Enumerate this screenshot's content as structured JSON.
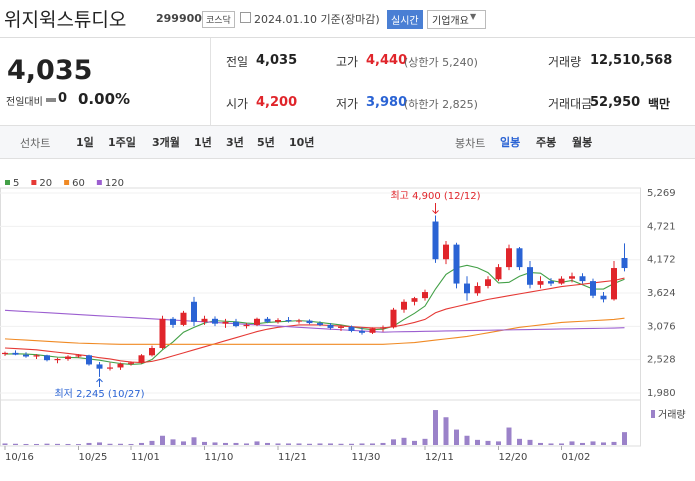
{
  "header": {
    "name": "위지윅스튜디오",
    "code": "299900",
    "market": "코스닥",
    "date": "2024.01.10 기준(장마감)",
    "realtime": "실시간",
    "company": "기업개요"
  },
  "quote": {
    "price": "4,035",
    "change_label": "전일대비",
    "change": "0",
    "change_rate": "0.00%"
  },
  "stats": [
    {
      "label": "전일",
      "value": "4,035",
      "color": "#222"
    },
    {
      "label": "고가",
      "value": "4,440",
      "note": "(상한가 5,240)",
      "color": "#e0252b"
    },
    {
      "label": "거래량",
      "value": "12,510,568",
      "color": "#222"
    },
    {
      "label": "시가",
      "value": "4,200",
      "color": "#e0252b"
    },
    {
      "label": "저가",
      "value": "3,980",
      "note": "(하한가 2,825)",
      "color": "#2a63d4"
    },
    {
      "label": "거래대금",
      "value": "52,950",
      "unit": "백만",
      "color": "#222"
    }
  ],
  "toolbar": {
    "line_chart": "선차트",
    "periods": [
      "1일",
      "1주일",
      "3개월",
      "1년",
      "3년",
      "5년",
      "10년"
    ],
    "candle_chart": "봉차트",
    "candle_periods": [
      "일봉",
      "주봉",
      "월봉"
    ],
    "selected_index": 0
  },
  "chart_data": {
    "type": "candlestick",
    "categories": [
      "10/16",
      null,
      null,
      null,
      null,
      null,
      null,
      "10/25",
      null,
      null,
      null,
      null,
      "11/01",
      null,
      null,
      null,
      null,
      null,
      null,
      "11/10",
      null,
      null,
      null,
      null,
      null,
      null,
      "11/21",
      null,
      null,
      null,
      null,
      null,
      null,
      "11/30",
      null,
      null,
      null,
      null,
      null,
      null,
      "12/11",
      null,
      null,
      null,
      null,
      null,
      null,
      "12/20",
      null,
      null,
      null,
      null,
      null,
      "01/02",
      null,
      null,
      null,
      null,
      null,
      null
    ],
    "open": [
      2620,
      2640,
      2610,
      2580,
      2600,
      2520,
      2540,
      2580,
      2600,
      2450,
      2380,
      2400,
      2460,
      2480,
      2600,
      2720,
      3200,
      3100,
      3480,
      3150,
      3200,
      3120,
      3150,
      3080,
      3100,
      3200,
      3150,
      3180,
      3160,
      3170,
      3130,
      3100,
      3050,
      3070,
      3000,
      2970,
      3040,
      3060,
      3350,
      3480,
      3540,
      4800,
      4180,
      4420,
      3780,
      3620,
      3740,
      3850,
      4050,
      4360,
      4050,
      3760,
      3820,
      3780,
      3860,
      3900,
      3820,
      3580,
      3520,
      4200
    ],
    "high": [
      2660,
      2680,
      2650,
      2620,
      2610,
      2560,
      2600,
      2620,
      2610,
      2490,
      2480,
      2480,
      2500,
      2620,
      2760,
      3250,
      3230,
      3330,
      3560,
      3250,
      3240,
      3200,
      3200,
      3130,
      3220,
      3230,
      3210,
      3230,
      3200,
      3190,
      3160,
      3130,
      3100,
      3090,
      3060,
      3060,
      3090,
      3380,
      3520,
      3560,
      3680,
      4900,
      4480,
      4450,
      3900,
      3800,
      3900,
      4100,
      4420,
      4380,
      4150,
      3900,
      3870,
      3900,
      3960,
      3950,
      3860,
      3640,
      4150,
      4440
    ],
    "low": [
      2590,
      2600,
      2560,
      2540,
      2500,
      2470,
      2510,
      2560,
      2430,
      2245,
      2350,
      2360,
      2430,
      2460,
      2580,
      2700,
      3050,
      3080,
      3080,
      3100,
      3080,
      3050,
      3060,
      3040,
      3080,
      3130,
      3120,
      3140,
      3120,
      3110,
      3080,
      3020,
      3000,
      2980,
      2940,
      2950,
      2990,
      3040,
      3300,
      3420,
      3500,
      4120,
      4100,
      3700,
      3500,
      3580,
      3700,
      3820,
      4000,
      4000,
      3700,
      3700,
      3740,
      3760,
      3800,
      3780,
      3540,
      3470,
      3500,
      3980
    ],
    "close": [
      2640,
      2610,
      2580,
      2600,
      2520,
      2540,
      2580,
      2600,
      2450,
      2380,
      2400,
      2460,
      2480,
      2600,
      2720,
      3200,
      3100,
      3300,
      3150,
      3200,
      3120,
      3150,
      3080,
      3100,
      3200,
      3150,
      3180,
      3160,
      3170,
      3130,
      3100,
      3050,
      3070,
      3000,
      2970,
      3040,
      3060,
      3350,
      3480,
      3540,
      3640,
      4180,
      4420,
      3780,
      3620,
      3740,
      3850,
      4050,
      4360,
      4050,
      3760,
      3820,
      3780,
      3860,
      3900,
      3820,
      3580,
      3520,
      4035,
      4035
    ],
    "up_color": "#e0252b",
    "down_color": "#2a63d4",
    "ylim": [
      1980,
      5269
    ],
    "yticks": [
      {
        "value": 1980,
        "label": "1,980"
      },
      {
        "value": 2528,
        "label": "2,528"
      },
      {
        "value": 3076,
        "label": "3,076"
      },
      {
        "value": 3624,
        "label": "3,624"
      },
      {
        "value": 4172,
        "label": "4,172"
      },
      {
        "value": 4721,
        "label": "4,721"
      },
      {
        "value": 5269,
        "label": "5,269"
      }
    ],
    "grid": true,
    "series": [
      {
        "name": "5",
        "color": "#43a047",
        "values": [
          2620,
          2625,
          2620,
          2610,
          2590,
          2570,
          2565,
          2560,
          2540,
          2520,
          2490,
          2465,
          2450,
          2460,
          2530,
          2690,
          2820,
          2980,
          3060,
          3130,
          3170,
          3160,
          3150,
          3130,
          3120,
          3140,
          3150,
          3160,
          3170,
          3160,
          3140,
          3120,
          3100,
          3070,
          3040,
          3020,
          3030,
          3080,
          3190,
          3290,
          3410,
          3690,
          3930,
          4040,
          4080,
          4040,
          3960,
          3790,
          3800,
          3900,
          3960,
          3950,
          3830,
          3800,
          3830,
          3760,
          3690,
          3690,
          3780,
          3850
        ]
      },
      {
        "name": "20",
        "color": "#e53935",
        "values": [
          2720,
          2710,
          2700,
          2690,
          2670,
          2650,
          2630,
          2610,
          2590,
          2560,
          2540,
          2510,
          2490,
          2480,
          2500,
          2540,
          2590,
          2640,
          2690,
          2740,
          2790,
          2840,
          2890,
          2940,
          2990,
          3030,
          3060,
          3080,
          3100,
          3100,
          3100,
          3090,
          3080,
          3070,
          3060,
          3050,
          3050,
          3070,
          3100,
          3140,
          3190,
          3300,
          3360,
          3400,
          3440,
          3480,
          3520,
          3550,
          3580,
          3610,
          3640,
          3670,
          3700,
          3730,
          3750,
          3770,
          3790,
          3810,
          3830,
          3870
        ]
      },
      {
        "name": "60",
        "color": "#f08a24",
        "values": [
          2870,
          2860,
          2850,
          2840,
          2830,
          2820,
          2810,
          2800,
          2795,
          2790,
          2785,
          2780,
          2780,
          2780,
          2780,
          2780,
          2780,
          2780,
          2780,
          2780,
          2780,
          2780,
          2780,
          2780,
          2780,
          2780,
          2780,
          2780,
          2780,
          2780,
          2780,
          2780,
          2780,
          2780,
          2780,
          2780,
          2780,
          2790,
          2800,
          2810,
          2830,
          2850,
          2870,
          2890,
          2910,
          2940,
          2970,
          3000,
          3030,
          3060,
          3080,
          3100,
          3120,
          3140,
          3150,
          3160,
          3170,
          3180,
          3190,
          3210
        ]
      },
      {
        "name": "120",
        "color": "#9c5fd0",
        "values": [
          3340,
          3330,
          3320,
          3310,
          3300,
          3290,
          3280,
          3270,
          3260,
          3250,
          3240,
          3230,
          3220,
          3210,
          3200,
          3190,
          3180,
          3170,
          3160,
          3150,
          3140,
          3130,
          3120,
          3110,
          3100,
          3090,
          3080,
          3070,
          3060,
          3050,
          3040,
          3030,
          3020,
          3010,
          3000,
          2990,
          2980,
          2985,
          2988,
          2991,
          2994,
          2997,
          3000,
          3003,
          3006,
          3009,
          3012,
          3015,
          3018,
          3021,
          3024,
          3027,
          3030,
          3033,
          3036,
          3039,
          3042,
          3045,
          3048,
          3054
        ]
      }
    ],
    "volume": {
      "name": "거래량",
      "color": "#9b82c9",
      "ylim": [
        0,
        36000000
      ],
      "values": [
        1500000,
        1200000,
        1000000,
        1000000,
        1300000,
        1100000,
        1000000,
        900000,
        2000000,
        2500000,
        1200000,
        1200000,
        1000000,
        2000000,
        4000000,
        9000000,
        5500000,
        3500000,
        7500000,
        3000000,
        2500000,
        2000000,
        2000000,
        1500000,
        3500000,
        2000000,
        1500000,
        1500000,
        1500000,
        1200000,
        1500000,
        1500000,
        1200000,
        1200000,
        1500000,
        1500000,
        2000000,
        5500000,
        7000000,
        4000000,
        6000000,
        34000000,
        27000000,
        15000000,
        9000000,
        5000000,
        4000000,
        3500000,
        17000000,
        6000000,
        5000000,
        2000000,
        1500000,
        1500000,
        3500000,
        2000000,
        3500000,
        2500000,
        3000000,
        12510568
      ]
    },
    "annotations": [
      {
        "text": "최고 4,900 (12/12)",
        "color": "#e0252b"
      },
      {
        "text": "최저 2,245 (10/27)",
        "color": "#2a63d4"
      }
    ]
  }
}
